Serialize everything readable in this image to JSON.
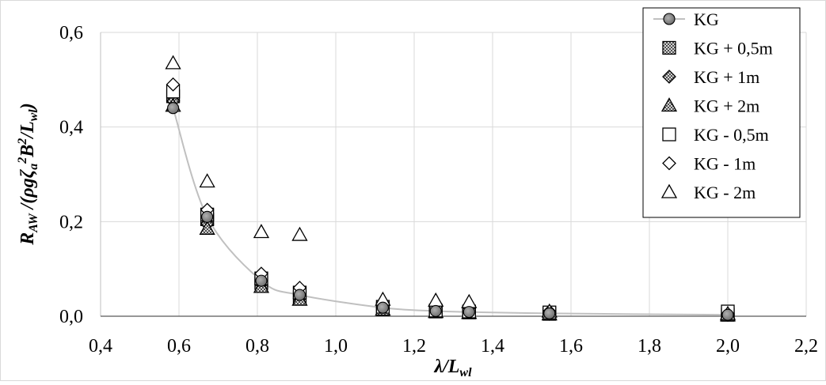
{
  "chart_data": {
    "type": "scatter",
    "x_ticks": [
      "0,4",
      "0,6",
      "0,8",
      "1,0",
      "1,2",
      "1,4",
      "1,6",
      "1,8",
      "2,0",
      "2,2"
    ],
    "y_ticks": [
      "0,0",
      "0,2",
      "0,4",
      "0,6"
    ],
    "xlim": [
      0.4,
      2.2
    ],
    "ylim": [
      0,
      0.6
    ],
    "grid": true,
    "legend_position": "top-right",
    "colors": {
      "line": "#c0c0c0",
      "grid": "#d9d9d9",
      "marker_stroke": "#000000"
    },
    "series": [
      {
        "name": "KG",
        "marker": "circle-line",
        "x": [
          0.585,
          0.672,
          0.81,
          0.908,
          1.12,
          1.255,
          1.34,
          1.545,
          2.0
        ],
        "y": [
          0.44,
          0.21,
          0.075,
          0.045,
          0.018,
          0.011,
          0.009,
          0.006,
          0.003
        ]
      },
      {
        "name": "KG + 0,5m",
        "marker": "hatched-square",
        "x": [
          0.585,
          0.672,
          0.81,
          0.908,
          1.12,
          1.255,
          1.34,
          1.545,
          2.0
        ],
        "y": [
          0.465,
          0.205,
          0.07,
          0.04,
          0.015,
          0.01,
          0.008,
          0.005,
          0.003
        ]
      },
      {
        "name": "KG + 1m",
        "marker": "hatched-diamond",
        "x": [
          0.585,
          0.672,
          0.81,
          0.908,
          1.12,
          1.255,
          1.34,
          1.545,
          2.0
        ],
        "y": [
          0.455,
          0.195,
          0.068,
          0.038,
          0.016,
          0.011,
          0.009,
          0.005,
          0.003
        ]
      },
      {
        "name": "KG + 2m",
        "marker": "hatched-triangle",
        "x": [
          0.585,
          0.672,
          0.81,
          0.908,
          1.12,
          1.255,
          1.34,
          1.545,
          2.0
        ],
        "y": [
          0.445,
          0.185,
          0.062,
          0.035,
          0.014,
          0.009,
          0.007,
          0.004,
          0.002
        ]
      },
      {
        "name": "KG - 0,5m",
        "marker": "open-square",
        "x": [
          0.585,
          0.672,
          0.81,
          0.908,
          1.12,
          1.255,
          1.34,
          1.545,
          2.0
        ],
        "y": [
          0.475,
          0.215,
          0.08,
          0.05,
          0.02,
          0.012,
          0.01,
          0.008,
          0.01
        ]
      },
      {
        "name": "KG - 1m",
        "marker": "open-diamond",
        "x": [
          0.585,
          0.672,
          0.81,
          0.908,
          1.12,
          1.255,
          1.34,
          1.545,
          2.0
        ],
        "y": [
          0.49,
          0.225,
          0.09,
          0.06,
          0.028,
          0.02,
          0.018,
          0.01,
          0.005
        ]
      },
      {
        "name": "KG - 2m",
        "marker": "open-triangle",
        "x": [
          0.585,
          0.672,
          0.81,
          0.908,
          1.12,
          1.255,
          1.34,
          1.545,
          2.0
        ],
        "y": [
          0.535,
          0.285,
          0.178,
          0.172,
          0.035,
          0.033,
          0.03,
          0.01,
          0.005
        ]
      }
    ]
  }
}
